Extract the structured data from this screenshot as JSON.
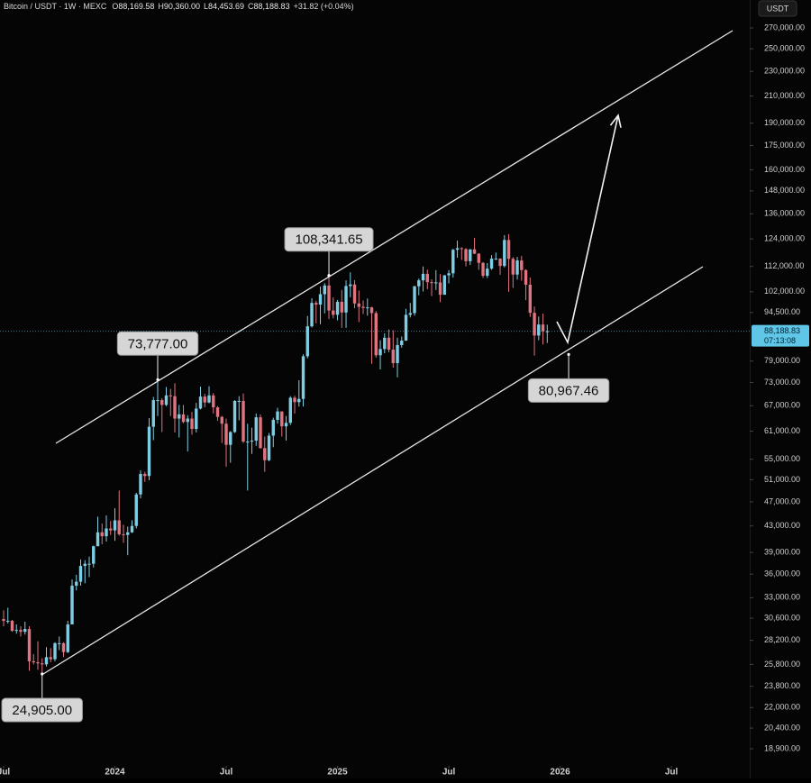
{
  "header": {
    "symbol": "Bitcoin / USDT · 1W · MEXC",
    "items": [
      {
        "key": "O",
        "value": "88,169.58"
      },
      {
        "key": "H",
        "value": "90,360.00"
      },
      {
        "key": "L",
        "value": "84,453.69"
      },
      {
        "key": "C",
        "value": "88,188.83"
      }
    ],
    "change": "+31.82 (+0.04%)",
    "currency": "USDT"
  },
  "chart_data": {
    "type": "candlestick",
    "log_scale": true,
    "up_color": "#7fcde3",
    "down_color": "#e07480",
    "categories": [
      null,
      null,
      null,
      null,
      null,
      null,
      null,
      null,
      null,
      null,
      null,
      null,
      null,
      null,
      null,
      null,
      null,
      null,
      null,
      null,
      null,
      null,
      null,
      null,
      null,
      null,
      null,
      null,
      null,
      null,
      null,
      null,
      null,
      null,
      null,
      null,
      null,
      null,
      null,
      null,
      null,
      null,
      null,
      null,
      null,
      null,
      null,
      null,
      null,
      null,
      null,
      null,
      null,
      null,
      null,
      null,
      null,
      null,
      null,
      null,
      null,
      null,
      null,
      null,
      null,
      null,
      null,
      null,
      null,
      null,
      null,
      null,
      null,
      null,
      null,
      null,
      null,
      null,
      null,
      null,
      null,
      null,
      null,
      null,
      null,
      null,
      null,
      null,
      null,
      null,
      null,
      null,
      null,
      null,
      null,
      null,
      null,
      null,
      null,
      null,
      null,
      null,
      null,
      null,
      null,
      null,
      null,
      null,
      null,
      null,
      null,
      null,
      null,
      null,
      null,
      null,
      null,
      null,
      null,
      null,
      null,
      null,
      null,
      null,
      null,
      null,
      null,
      null
    ],
    "open": [
      30500,
      30300,
      30300,
      29200,
      29300,
      29100,
      29400,
      26100,
      26000,
      25900,
      25800,
      26500,
      26300,
      27900,
      27900,
      27000,
      29900,
      34500,
      35000,
      37100,
      37400,
      37400,
      39900,
      42000,
      41400,
      42600,
      42300,
      43900,
      41700,
      41600,
      42000,
      43000,
      48300,
      52100,
      51700,
      62000,
      68400,
      68400,
      67200,
      69600,
      69400,
      63900,
      64900,
      63100,
      63900,
      61500,
      66300,
      69300,
      67800,
      69600,
      66600,
      64300,
      62700,
      58000,
      60800,
      68200,
      68200,
      58700,
      58700,
      58900,
      64200,
      57300,
      54800,
      60000,
      63600,
      65600,
      62100,
      62900,
      69000,
      67900,
      68700,
      80400,
      89800,
      97900,
      97300,
      101100,
      104400,
      95200,
      93700,
      98300,
      94500,
      104200,
      104800,
      97700,
      96500,
      96100,
      96300,
      94300,
      80700,
      82600,
      86100,
      82400,
      78400,
      83800,
      85200,
      93700,
      94300,
      104100,
      106400,
      109000,
      105700,
      105600,
      105600,
      100900,
      108400,
      109200,
      119100,
      119800,
      119400,
      114200,
      119300,
      117400,
      113500,
      108200,
      111100,
      115300,
      115300,
      112200,
      123500,
      115200,
      108700,
      114500,
      110500,
      104700,
      94400,
      86800,
      90400,
      88169.58
    ],
    "high": [
      31500,
      31800,
      30400,
      29900,
      29700,
      30200,
      29700,
      26800,
      28100,
      26400,
      27500,
      27400,
      28000,
      28600,
      28000,
      30300,
      35300,
      35900,
      38000,
      37900,
      38400,
      40000,
      44500,
      43400,
      44700,
      43800,
      45900,
      49000,
      43200,
      42900,
      43900,
      48600,
      52800,
      52500,
      64000,
      69200,
      73777,
      68900,
      71800,
      71300,
      72800,
      67200,
      67200,
      64700,
      65500,
      67700,
      71900,
      70000,
      72000,
      70200,
      66900,
      64500,
      63900,
      61000,
      68400,
      69400,
      70100,
      62700,
      61800,
      65100,
      64900,
      59800,
      60600,
      64100,
      66500,
      65600,
      64500,
      69400,
      69500,
      73600,
      81000,
      93300,
      99600,
      98700,
      104000,
      105300,
      108341.65,
      99900,
      99000,
      102700,
      106400,
      109600,
      106500,
      102500,
      98800,
      99500,
      96500,
      95000,
      85300,
      87500,
      88800,
      88500,
      86100,
      86500,
      95800,
      97900,
      104300,
      107100,
      112000,
      110700,
      106800,
      110500,
      108900,
      108500,
      110500,
      119500,
      123200,
      120200,
      119800,
      119300,
      124500,
      117600,
      113800,
      113400,
      116800,
      117900,
      115400,
      125700,
      126200,
      115900,
      116000,
      116400,
      110800,
      107500,
      96600,
      93100,
      94100,
      90360
    ],
    "low": [
      29700,
      30000,
      29100,
      28900,
      28600,
      28800,
      25200,
      25800,
      25300,
      24905,
      25600,
      26000,
      26100,
      27200,
      26500,
      26900,
      29900,
      33900,
      34500,
      34800,
      35600,
      36900,
      39900,
      40200,
      40600,
      41600,
      40700,
      41500,
      40400,
      38600,
      41900,
      42600,
      47600,
      50600,
      50900,
      59000,
      64500,
      60800,
      66900,
      64500,
      60700,
      59600,
      62800,
      56600,
      60200,
      60700,
      66100,
      66600,
      67600,
      65100,
      63400,
      58400,
      53500,
      54300,
      60600,
      63500,
      58400,
      49000,
      56100,
      57800,
      57200,
      52500,
      54600,
      57500,
      62700,
      59800,
      58900,
      62400,
      65100,
      66800,
      66800,
      79800,
      89400,
      90800,
      90500,
      94200,
      92200,
      92500,
      91800,
      89300,
      89300,
      100000,
      96000,
      91200,
      94000,
      93400,
      78200,
      80000,
      76600,
      81300,
      81600,
      77100,
      74400,
      83000,
      85100,
      92800,
      93400,
      100700,
      102100,
      103000,
      100400,
      102700,
      98200,
      100900,
      105200,
      107500,
      115700,
      114700,
      112000,
      112600,
      117200,
      110600,
      107300,
      107300,
      110600,
      114700,
      108600,
      111600,
      102000,
      103500,
      106700,
      106300,
      98900,
      93000,
      80600,
      85300,
      84000,
      84453.69
    ],
    "close": [
      30300,
      30300,
      29200,
      29300,
      29100,
      29400,
      26100,
      26000,
      25900,
      25800,
      26500,
      26300,
      27900,
      27900,
      27000,
      29900,
      34500,
      35000,
      37100,
      37400,
      37400,
      39900,
      42000,
      41400,
      42600,
      42300,
      43900,
      41700,
      41600,
      42000,
      43000,
      48300,
      52100,
      51700,
      62000,
      68400,
      68400,
      67200,
      69600,
      69400,
      63900,
      64900,
      63100,
      63900,
      61500,
      66300,
      69300,
      67800,
      69600,
      66600,
      64300,
      62700,
      58000,
      60800,
      68200,
      68200,
      58700,
      58700,
      58900,
      64200,
      57300,
      54800,
      60000,
      63600,
      65600,
      62100,
      62900,
      69000,
      67900,
      68700,
      80400,
      89800,
      97900,
      97300,
      101100,
      104400,
      95200,
      93700,
      98300,
      94500,
      104200,
      104800,
      97700,
      96500,
      96100,
      96300,
      94300,
      80700,
      82600,
      86100,
      82400,
      78400,
      83800,
      85200,
      93700,
      94300,
      104100,
      106400,
      109000,
      105700,
      105600,
      105600,
      100900,
      108400,
      109200,
      119100,
      119800,
      119400,
      114200,
      119300,
      117400,
      113500,
      108200,
      111100,
      115300,
      115300,
      112200,
      123500,
      115200,
      108700,
      114500,
      110500,
      104700,
      94400,
      86800,
      90400,
      88200,
      88188.83
    ],
    "xlim": [
      -0.84,
      174.3
    ],
    "xticks": [
      {
        "value": 0,
        "label": "Jul"
      },
      {
        "value": 26,
        "label": "2024"
      },
      {
        "value": 52,
        "label": "Jul"
      },
      {
        "value": 78,
        "label": "2025"
      },
      {
        "value": 104,
        "label": "Jul"
      },
      {
        "value": 130,
        "label": "2026"
      },
      {
        "value": 156,
        "label": "Jul"
      }
    ],
    "ylim": [
      17744,
      299300
    ],
    "yticks": [
      {
        "value": 270000,
        "label": "270,000.00"
      },
      {
        "value": 250000,
        "label": "250,000.00"
      },
      {
        "value": 230000,
        "label": "230,000.00"
      },
      {
        "value": 210000,
        "label": "210,000.00"
      },
      {
        "value": 190000,
        "label": "190,000.00"
      },
      {
        "value": 175000,
        "label": "175,000.00"
      },
      {
        "value": 160000,
        "label": "160,000.00"
      },
      {
        "value": 148000,
        "label": "148,000.00"
      },
      {
        "value": 136000,
        "label": "136,000.00"
      },
      {
        "value": 124000,
        "label": "124,000.00"
      },
      {
        "value": 112000,
        "label": "112,000.00"
      },
      {
        "value": 102000,
        "label": "102,000.00"
      },
      {
        "value": 94500,
        "label": "94,500.00"
      },
      {
        "value": 79000,
        "label": "79,000.00"
      },
      {
        "value": 73000,
        "label": "73,000.00"
      },
      {
        "value": 67000,
        "label": "67,000.00"
      },
      {
        "value": 61000,
        "label": "61,000.00"
      },
      {
        "value": 55000,
        "label": "55,000.00"
      },
      {
        "value": 51000,
        "label": "51,000.00"
      },
      {
        "value": 47000,
        "label": "47,000.00"
      },
      {
        "value": 43000,
        "label": "43,000.00"
      },
      {
        "value": 39000,
        "label": "39,000.00"
      },
      {
        "value": 36000,
        "label": "36,000.00"
      },
      {
        "value": 33000,
        "label": "33,000.00"
      },
      {
        "value": 30600,
        "label": "30,600.00"
      },
      {
        "value": 28200,
        "label": "28,200.00"
      },
      {
        "value": 25800,
        "label": "25,800.00"
      },
      {
        "value": 23800,
        "label": "23,800.00"
      },
      {
        "value": 22000,
        "label": "22,000.00"
      },
      {
        "value": 20400,
        "label": "20,400.00"
      },
      {
        "value": 18900,
        "label": "18,900.00"
      }
    ],
    "current_price": {
      "value": 88188.83,
      "label": "88,188.83",
      "countdown": "07:13:08",
      "color": "#5fc6e8"
    },
    "annotations": [
      {
        "index": 76,
        "value": 108341.65,
        "label": "108,341.65",
        "side": "above"
      },
      {
        "index": 36,
        "value": 73777,
        "label": "73,777.00",
        "side": "above"
      },
      {
        "index": 9,
        "value": 24905,
        "label": "24,905.00",
        "side": "below"
      },
      {
        "index": 132,
        "value": 80967.46,
        "label": "80,967.46",
        "side": "below"
      }
    ]
  }
}
